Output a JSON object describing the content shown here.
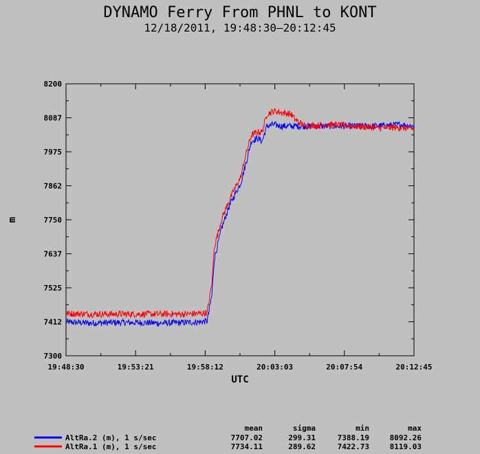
{
  "chart_data": {
    "type": "line",
    "title": "DYNAMO Ferry From PHNL to KONT",
    "subtitle": "12/18/2011, 19:48:30–20:12:45",
    "xlabel": "UTC",
    "ylabel": "m",
    "x_ticks": [
      "19:48:30",
      "19:53:21",
      "19:58:12",
      "20:03:03",
      "20:07:54",
      "20:12:45"
    ],
    "y_ticks": [
      "7300",
      "7412",
      "7525",
      "7637",
      "7750",
      "7862",
      "7975",
      "8087",
      "8200"
    ],
    "xlim_seconds_from_start": [
      0,
      1455
    ],
    "ylim": [
      7300,
      8200
    ],
    "grid": false,
    "stats_headers": [
      "mean",
      "sigma",
      "min",
      "max"
    ],
    "series": [
      {
        "name": "AltRa.2 (m), 1 s/sec",
        "color": "#0000ff",
        "stats": [
          "7707.02",
          "299.31",
          "7388.19",
          "8092.26"
        ],
        "points": [
          [
            0,
            7412
          ],
          [
            100,
            7408
          ],
          [
            200,
            7410
          ],
          [
            300,
            7410
          ],
          [
            400,
            7408
          ],
          [
            500,
            7410
          ],
          [
            560,
            7412
          ],
          [
            590,
            7415
          ],
          [
            610,
            7500
          ],
          [
            620,
            7620
          ],
          [
            650,
            7720
          ],
          [
            680,
            7790
          ],
          [
            710,
            7840
          ],
          [
            730,
            7870
          ],
          [
            750,
            7930
          ],
          [
            775,
            8010
          ],
          [
            800,
            8020
          ],
          [
            820,
            8010
          ],
          [
            840,
            8060
          ],
          [
            870,
            8065
          ],
          [
            900,
            8060
          ],
          [
            1000,
            8060
          ],
          [
            1100,
            8060
          ],
          [
            1200,
            8060
          ],
          [
            1300,
            8060
          ],
          [
            1400,
            8065
          ],
          [
            1455,
            8060
          ]
        ]
      },
      {
        "name": "AltRa.1 (m), 1 s/sec",
        "color": "#ff0000",
        "stats": [
          "7734.11",
          "289.62",
          "7422.73",
          "8119.03"
        ],
        "points": [
          [
            0,
            7440
          ],
          [
            100,
            7438
          ],
          [
            200,
            7438
          ],
          [
            300,
            7438
          ],
          [
            400,
            7438
          ],
          [
            500,
            7438
          ],
          [
            560,
            7440
          ],
          [
            590,
            7442
          ],
          [
            610,
            7540
          ],
          [
            620,
            7660
          ],
          [
            650,
            7750
          ],
          [
            680,
            7810
          ],
          [
            710,
            7860
          ],
          [
            730,
            7890
          ],
          [
            750,
            7960
          ],
          [
            775,
            8030
          ],
          [
            800,
            8040
          ],
          [
            820,
            8040
          ],
          [
            840,
            8100
          ],
          [
            870,
            8110
          ],
          [
            900,
            8105
          ],
          [
            940,
            8100
          ],
          [
            960,
            8080
          ],
          [
            1000,
            8060
          ],
          [
            1100,
            8065
          ],
          [
            1200,
            8060
          ],
          [
            1300,
            8055
          ],
          [
            1400,
            8055
          ],
          [
            1455,
            8050
          ]
        ]
      }
    ]
  }
}
